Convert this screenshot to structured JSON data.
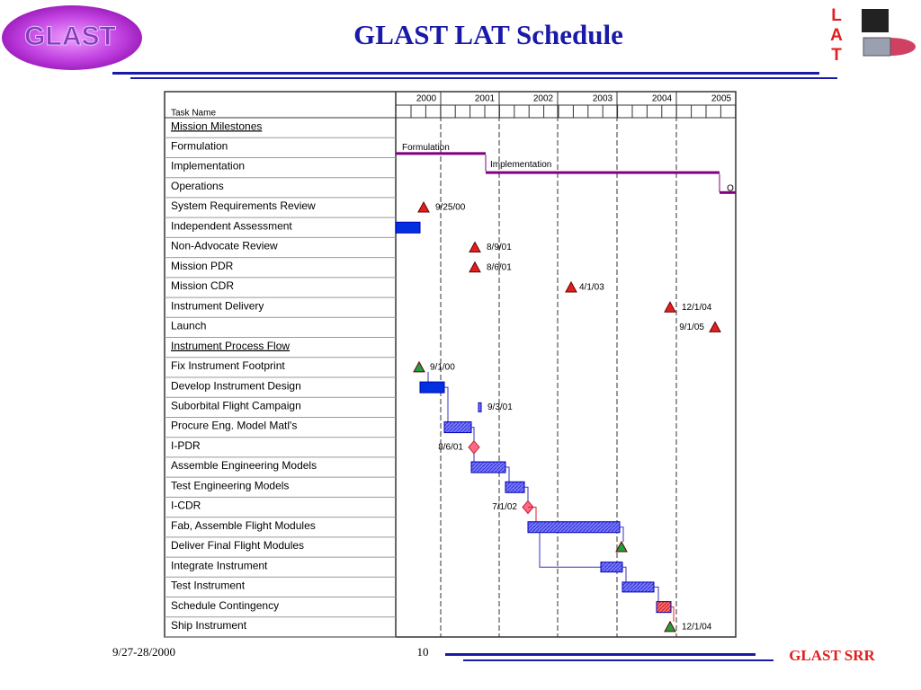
{
  "header": {
    "logo": "GLAST",
    "title": "GLAST LAT Schedule",
    "lat_letters": [
      "L",
      "A",
      "T"
    ]
  },
  "columns": {
    "task_name": "Task Name",
    "years": [
      "2000",
      "2001",
      "2002",
      "2003",
      "2004",
      "2005"
    ]
  },
  "tasks": [
    {
      "name": "Mission Milestones",
      "heading": true
    },
    {
      "name": "Formulation",
      "label": "Formulation"
    },
    {
      "name": "Implementation",
      "label": "Implementation"
    },
    {
      "name": "Operations",
      "label": "O"
    },
    {
      "name": "System Requirements Review",
      "label": "9/25/00"
    },
    {
      "name": "Independent Assessment"
    },
    {
      "name": "Non-Advocate Review",
      "label": "8/9/01"
    },
    {
      "name": "Mission PDR",
      "label": "8/6/01"
    },
    {
      "name": "Mission CDR",
      "label": "4/1/03"
    },
    {
      "name": "Instrument Delivery",
      "label": "12/1/04"
    },
    {
      "name": "Launch",
      "label": "9/1/05"
    },
    {
      "name": "Instrument Process Flow",
      "heading": true
    },
    {
      "name": "Fix Instrument Footprint",
      "label": "9/1/00"
    },
    {
      "name": "Develop Instrument Design"
    },
    {
      "name": "Suborbital Flight Campaign",
      "label": "9/3/01"
    },
    {
      "name": "Procure Eng. Model Matl's"
    },
    {
      "name": "I-PDR",
      "label": "8/6/01"
    },
    {
      "name": "Assemble Engineering Models"
    },
    {
      "name": "Test Engineering Models"
    },
    {
      "name": "I-CDR",
      "label": "7/1/02"
    },
    {
      "name": "Fab, Assemble Flight Modules"
    },
    {
      "name": "Deliver Final  Flight Modules"
    },
    {
      "name": "Integrate Instrument"
    },
    {
      "name": "Test Instrument"
    },
    {
      "name": "Schedule Contingency"
    },
    {
      "name": "Ship Instrument",
      "label": "12/1/04"
    }
  ],
  "footer": {
    "date": "9/27-28/2000",
    "page": "10",
    "name": "GLAST SRR"
  }
}
